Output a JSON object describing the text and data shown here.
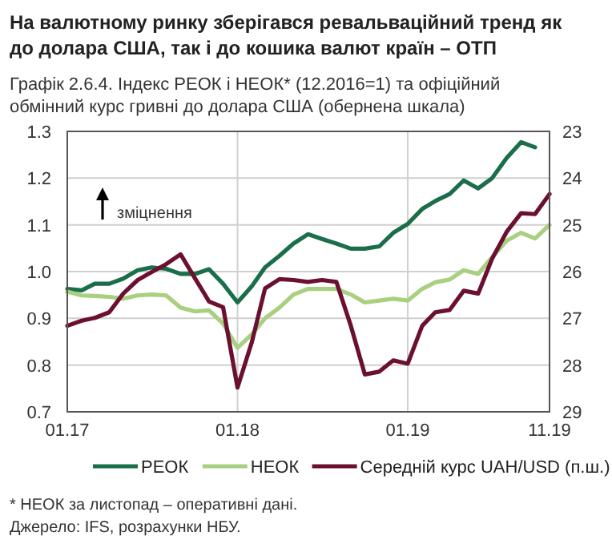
{
  "chart_data": {
    "type": "line",
    "title": "На валютному ринку зберігався ревальваційний тренд як до долара США, так і до кошика валют країн – ОТП",
    "subtitle": "Графік 2.6.4. Індекс РЕОК і НЕОК* (12.2016=1) та офіційний обмінний курс гривні до долара США (обернена шкала)",
    "x": [
      "2017-01",
      "2017-02",
      "2017-03",
      "2017-04",
      "2017-05",
      "2017-06",
      "2017-07",
      "2017-08",
      "2017-09",
      "2017-10",
      "2017-11",
      "2017-12",
      "2018-01",
      "2018-02",
      "2018-03",
      "2018-04",
      "2018-05",
      "2018-06",
      "2018-07",
      "2018-08",
      "2018-09",
      "2018-10",
      "2018-11",
      "2018-12",
      "2019-01",
      "2019-02",
      "2019-03",
      "2019-04",
      "2019-05",
      "2019-06",
      "2019-07",
      "2019-08",
      "2019-09",
      "2019-10",
      "2019-11"
    ],
    "series": [
      {
        "name": "РЕОК",
        "color": "#1a6e4a",
        "values": [
          0.963,
          0.96,
          0.974,
          0.974,
          0.985,
          1.003,
          1.009,
          1.006,
          0.995,
          0.995,
          1.005,
          0.974,
          0.934,
          0.969,
          1.009,
          1.034,
          1.06,
          1.08,
          1.07,
          1.06,
          1.049,
          1.049,
          1.054,
          1.083,
          1.102,
          1.134,
          1.151,
          1.166,
          1.195,
          1.178,
          1.2,
          1.243,
          1.277,
          1.266,
          null
        ]
      },
      {
        "name": "НЕОК",
        "color": "#a8d080",
        "values": [
          0.957,
          0.949,
          0.948,
          0.946,
          0.942,
          0.949,
          0.951,
          0.949,
          0.923,
          0.915,
          0.917,
          0.889,
          0.837,
          0.866,
          0.9,
          0.923,
          0.951,
          0.963,
          0.963,
          0.963,
          0.951,
          0.934,
          0.938,
          0.942,
          0.938,
          0.963,
          0.977,
          0.983,
          1.003,
          0.995,
          1.031,
          1.066,
          1.083,
          1.071,
          1.1
        ]
      },
      {
        "name": "Середній курс UAH/USD (п.ш.)",
        "color": "#6b1030",
        "axis": "y2",
        "values": [
          27.16,
          27.05,
          26.99,
          26.87,
          26.47,
          26.18,
          26.01,
          25.84,
          25.63,
          26.13,
          26.64,
          26.76,
          28.48,
          27.5,
          26.36,
          26.16,
          26.18,
          26.22,
          26.18,
          26.22,
          27.16,
          28.2,
          28.14,
          27.9,
          27.97,
          27.16,
          26.87,
          26.82,
          26.41,
          26.47,
          25.72,
          25.15,
          24.75,
          24.77,
          24.34
        ]
      }
    ],
    "xlim": [
      "2017-01",
      "2019-11"
    ],
    "xticks": [
      {
        "value": "2017-01",
        "label": "01.17"
      },
      {
        "value": "2018-01",
        "label": "01.18"
      },
      {
        "value": "2019-01",
        "label": "01.19"
      },
      {
        "value": "2019-11",
        "label": "11.19"
      }
    ],
    "ylim": [
      0.7,
      1.3
    ],
    "yticks": [
      0.7,
      0.8,
      0.9,
      {
        "value": 1,
        "label": "1.0"
      },
      1.1,
      1.2,
      1.3
    ],
    "y2lim": [
      29,
      23
    ],
    "y2ticks": [
      29,
      28,
      27,
      26,
      25,
      24,
      23
    ],
    "grid": true,
    "legend": "bottom",
    "annotations": [
      "зміцнення",
      "* НЕОК за листопад – оперативні дані.",
      "Джерело: IFS, розрахунки НБУ."
    ]
  }
}
